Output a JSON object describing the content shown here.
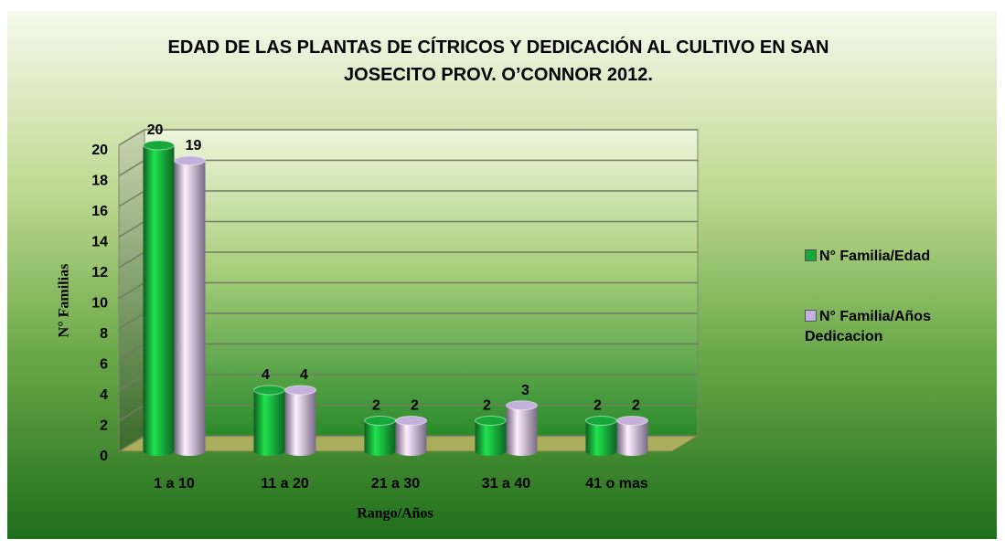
{
  "chart_data": {
    "type": "bar3d",
    "title": "EDAD DE LAS PLANTAS DE CÍTRICOS Y DEDICACIÓN AL CULTIVO EN SAN JOSECITO PROV. O’CONNOR 2012.",
    "x_label": "Rango/Años",
    "y_label": "N° Familias",
    "categories": [
      "1 a 10",
      "11 a 20",
      "21 a 30",
      "31 a 40",
      "41 o mas"
    ],
    "series": [
      {
        "name": "N° Familia/Edad",
        "color": "#17a83a",
        "values": [
          20,
          4,
          2,
          2,
          2
        ]
      },
      {
        "name": "N° Familia/Años Dedicacion",
        "color": "#c4b0dc",
        "values": [
          19,
          4,
          2,
          3,
          2
        ]
      }
    ],
    "ylim": [
      0,
      20
    ],
    "yticks": [
      0,
      2,
      4,
      6,
      8,
      10,
      12,
      14,
      16,
      18,
      20
    ],
    "grid": true,
    "legend": "right"
  }
}
